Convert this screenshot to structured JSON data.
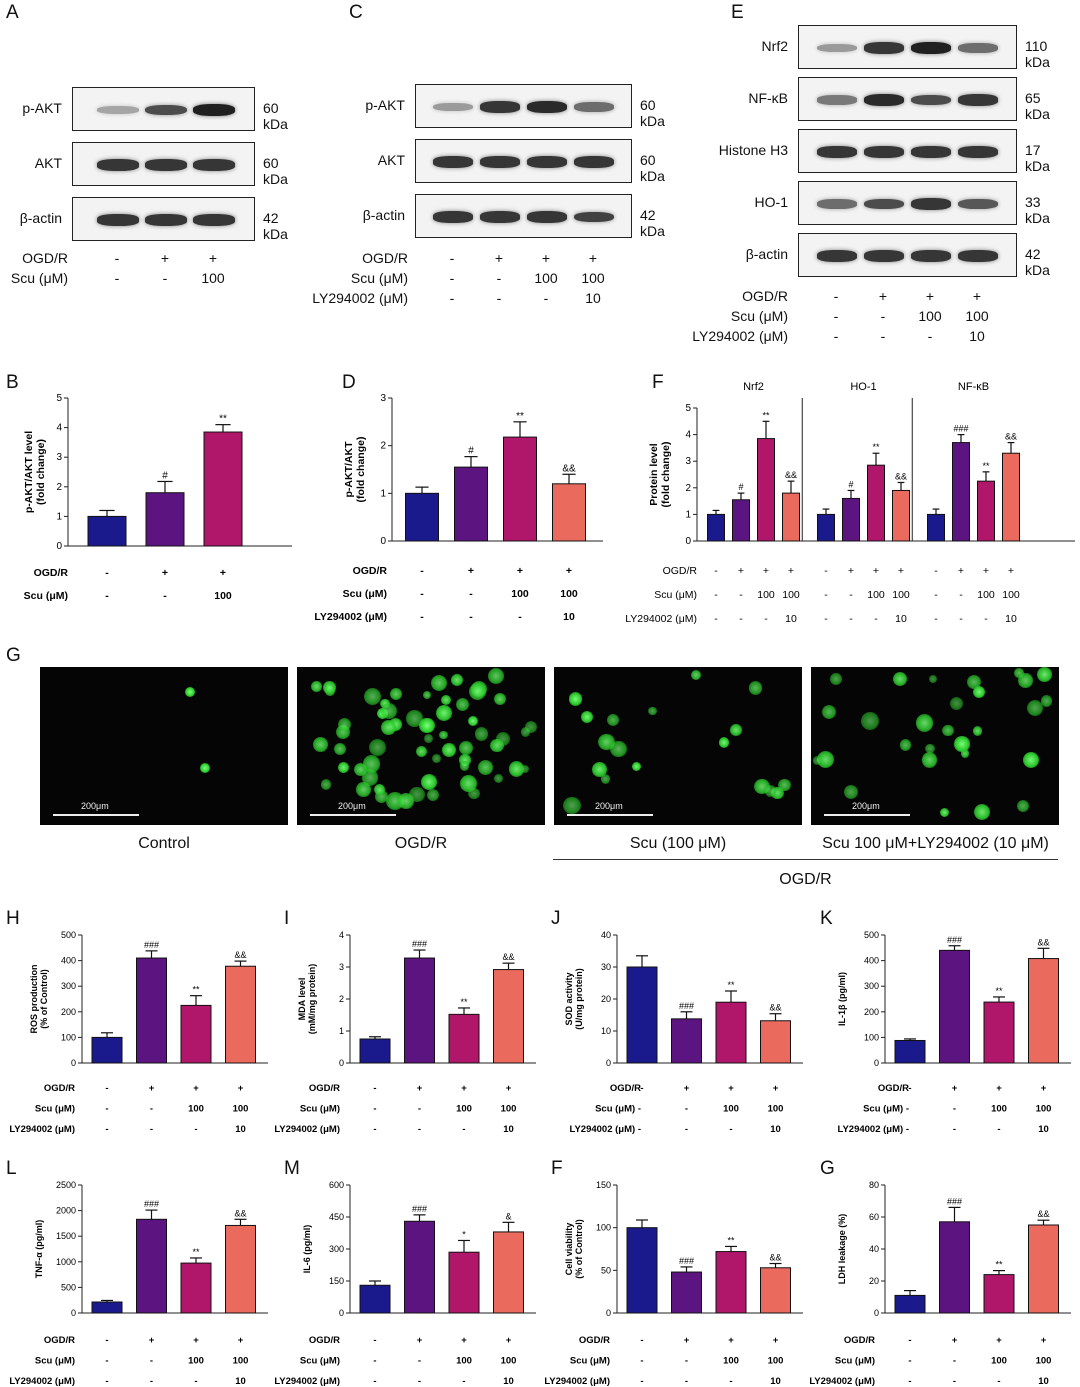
{
  "panels": {
    "A": "A",
    "B": "B",
    "C": "C",
    "D": "D",
    "E": "E",
    "F": "F",
    "G": "G",
    "H": "H",
    "I": "I",
    "J": "J",
    "K": "K",
    "L": "L",
    "M": "M",
    "F2": "F",
    "G2": "G"
  },
  "blot_A": {
    "rows": [
      {
        "label": "p-AKT",
        "kda": "60 kDa",
        "intensity": [
          0.35,
          0.75,
          0.95
        ]
      },
      {
        "label": "AKT",
        "kda": "60 kDa",
        "intensity": [
          0.85,
          0.85,
          0.85
        ]
      },
      {
        "label": "β-actin",
        "kda": "42 kDa",
        "intensity": [
          0.85,
          0.85,
          0.85
        ]
      }
    ],
    "cond_labels": [
      "OGD/R",
      "Scu (μM)"
    ],
    "cond_values": [
      [
        "-",
        "+",
        "+"
      ],
      [
        "-",
        "-",
        "100"
      ]
    ]
  },
  "blot_C": {
    "rows": [
      {
        "label": "p-AKT",
        "kda": "60 kDa",
        "intensity": [
          0.4,
          0.85,
          0.9,
          0.6
        ]
      },
      {
        "label": "AKT",
        "kda": "60 kDa",
        "intensity": [
          0.85,
          0.85,
          0.85,
          0.85
        ]
      },
      {
        "label": "β-actin",
        "kda": "42 kDa",
        "intensity": [
          0.85,
          0.85,
          0.85,
          0.8
        ]
      }
    ],
    "cond_labels": [
      "OGD/R",
      "Scu (μM)",
      "LY294002 (μM)"
    ],
    "cond_values": [
      [
        "-",
        "+",
        "+",
        "+"
      ],
      [
        "-",
        "-",
        "100",
        "100"
      ],
      [
        "-",
        "-",
        "-",
        "10"
      ]
    ]
  },
  "blot_E": {
    "rows": [
      {
        "label": "Nrf2",
        "kda": "110 kDa",
        "intensity": [
          0.4,
          0.85,
          0.95,
          0.6
        ]
      },
      {
        "label": "NF-κB",
        "kda": "65 kDa",
        "intensity": [
          0.55,
          0.9,
          0.75,
          0.85
        ]
      },
      {
        "label": "Histone H3",
        "kda": "17 kDa",
        "intensity": [
          0.85,
          0.85,
          0.85,
          0.85
        ]
      },
      {
        "label": "HO-1",
        "kda": "33 kDa",
        "intensity": [
          0.6,
          0.75,
          0.85,
          0.7
        ]
      },
      {
        "label": "β-actin",
        "kda": "42 kDa",
        "intensity": [
          0.85,
          0.85,
          0.85,
          0.85
        ]
      }
    ],
    "cond_labels": [
      "OGD/R",
      "Scu (μM)",
      "LY294002 (μM)"
    ],
    "cond_values": [
      [
        "-",
        "+",
        "+",
        "+"
      ],
      [
        "-",
        "-",
        "100",
        "100"
      ],
      [
        "-",
        "-",
        "-",
        "10"
      ]
    ]
  },
  "colors": {
    "c1": "#1a1a8c",
    "c2": "#5c1580",
    "c3": "#b0176b",
    "c4": "#ea6a5e"
  },
  "chart_data": [
    {
      "id": "B",
      "type": "bar",
      "ylabel": "p-AKT/AKT level\n(fold change)",
      "ylim": [
        0,
        5
      ],
      "yticks": [
        "0",
        "1",
        "2",
        "3",
        "4",
        "5"
      ],
      "values": [
        1.0,
        1.8,
        3.85
      ],
      "errors": [
        0.2,
        0.38,
        0.25
      ],
      "sig": [
        "",
        "#",
        "**"
      ],
      "cond_labels": [
        "OGD/R",
        "Scu (μM)"
      ],
      "cond_values": [
        [
          "-",
          "+",
          "+"
        ],
        [
          "-",
          "-",
          "100"
        ]
      ]
    },
    {
      "id": "D",
      "type": "bar",
      "ylabel": "p-AKT/AKT\n(fold change)",
      "ylim": [
        0,
        3
      ],
      "yticks": [
        "0",
        "1",
        "2",
        "3"
      ],
      "values": [
        1.0,
        1.55,
        2.18,
        1.2
      ],
      "errors": [
        0.13,
        0.22,
        0.32,
        0.2
      ],
      "sig": [
        "",
        "#",
        "**",
        "&&"
      ],
      "cond_labels": [
        "OGD/R",
        "Scu (μM)",
        "LY294002 (μM)"
      ],
      "cond_values": [
        [
          "-",
          "+",
          "+",
          "+"
        ],
        [
          "-",
          "-",
          "100",
          "100"
        ],
        [
          "-",
          "-",
          "-",
          "10"
        ]
      ]
    },
    {
      "id": "F",
      "type": "bar",
      "ylabel": "Protein level\n(fold change)",
      "ylim": [
        0,
        5
      ],
      "yticks": [
        "0",
        "1",
        "2",
        "3",
        "4",
        "5"
      ],
      "groups": [
        {
          "name": "Nrf2",
          "values": [
            1.0,
            1.55,
            3.85,
            1.8
          ],
          "errors": [
            0.15,
            0.25,
            0.65,
            0.45
          ],
          "sig": [
            "",
            "#",
            "**",
            "&&"
          ]
        },
        {
          "name": "HO-1",
          "values": [
            1.0,
            1.6,
            2.85,
            1.9
          ],
          "errors": [
            0.2,
            0.3,
            0.45,
            0.3
          ],
          "sig": [
            "",
            "#",
            "**",
            "&&"
          ]
        },
        {
          "name": "NF-κB",
          "values": [
            1.0,
            3.7,
            2.25,
            3.3
          ],
          "errors": [
            0.2,
            0.3,
            0.35,
            0.4
          ],
          "sig": [
            "",
            "###",
            "**",
            "&&"
          ]
        }
      ],
      "cond_labels": [
        "OGD/R",
        "Scu (μM)",
        "LY294002 (μM)"
      ],
      "cond_values": [
        [
          "-",
          "+",
          "+",
          "+"
        ],
        [
          "-",
          "-",
          "100",
          "100"
        ],
        [
          "-",
          "-",
          "-",
          "10"
        ]
      ]
    },
    {
      "id": "H",
      "type": "bar",
      "ylabel": "ROS production\n(% of Control)",
      "ylim": [
        0,
        500
      ],
      "yticks": [
        "0",
        "100",
        "200",
        "300",
        "400",
        "500"
      ],
      "values": [
        100,
        410,
        225,
        378
      ],
      "errors": [
        18,
        28,
        38,
        20
      ],
      "sig": [
        "",
        "###",
        "**",
        "&&"
      ],
      "cond_labels": [
        "OGD/R",
        "Scu (μM)",
        "LY294002 (μM)"
      ],
      "cond_values": [
        [
          "-",
          "+",
          "+",
          "+"
        ],
        [
          "-",
          "-",
          "100",
          "100"
        ],
        [
          "-",
          "-",
          "-",
          "10"
        ]
      ]
    },
    {
      "id": "I",
      "type": "bar",
      "ylabel": "MDA level\n(mM/mg protein)",
      "ylim": [
        0,
        4
      ],
      "yticks": [
        "0",
        "1",
        "2",
        "3",
        "4"
      ],
      "values": [
        0.75,
        3.28,
        1.52,
        2.92
      ],
      "errors": [
        0.07,
        0.25,
        0.2,
        0.2
      ],
      "sig": [
        "",
        "###",
        "**",
        "&&"
      ],
      "cond_labels": [
        "OGD/R",
        "Scu (μM)",
        "LY294002 (μM)"
      ],
      "cond_values": [
        [
          "-",
          "+",
          "+",
          "+"
        ],
        [
          "-",
          "-",
          "100",
          "100"
        ],
        [
          "-",
          "-",
          "-",
          "10"
        ]
      ]
    },
    {
      "id": "J",
      "type": "bar",
      "ylabel": "SOD activity\n(U/mg protein)",
      "ylim": [
        0,
        40
      ],
      "yticks": [
        "0",
        "10",
        "20",
        "30",
        "40"
      ],
      "values": [
        30,
        13.8,
        19,
        13.2
      ],
      "errors": [
        3.5,
        2.2,
        3.5,
        2.2
      ],
      "sig": [
        "",
        "###",
        "**",
        "&&"
      ],
      "cond_labels": [
        "OGD/R",
        "Scu (μM) -",
        "LY294002 (μM) -"
      ],
      "cond_values": [
        [
          "-",
          "+",
          "+",
          "+"
        ],
        [
          "",
          "-",
          "100",
          "100"
        ],
        [
          "",
          "-",
          "-",
          "10"
        ]
      ]
    },
    {
      "id": "K",
      "type": "bar",
      "ylabel": "IL-1β (pg/ml)",
      "ylim": [
        0,
        500
      ],
      "yticks": [
        "0",
        "100",
        "200",
        "300",
        "400",
        "500"
      ],
      "values": [
        88,
        440,
        238,
        408
      ],
      "errors": [
        6,
        18,
        20,
        40
      ],
      "sig": [
        "",
        "###",
        "**",
        "&&"
      ],
      "cond_labels": [
        "OGD/R",
        "Scu (μM) -",
        "LY294002 (μM) -"
      ],
      "cond_values": [
        [
          "-",
          "+",
          "+",
          "+"
        ],
        [
          "",
          "-",
          "100",
          "100"
        ],
        [
          "",
          "-",
          "-",
          "10"
        ]
      ]
    },
    {
      "id": "L",
      "type": "bar",
      "ylabel": "TNF-α (pg/ml)",
      "ylim": [
        0,
        2500
      ],
      "yticks": [
        "0",
        "500",
        "1000",
        "1500",
        "2000",
        "2500"
      ],
      "values": [
        215,
        1830,
        975,
        1710
      ],
      "errors": [
        30,
        180,
        100,
        120
      ],
      "sig": [
        "",
        "###",
        "**",
        "&&"
      ],
      "cond_labels": [
        "OGD/R",
        "Scu (μM)",
        "LY294002 (μM)"
      ],
      "cond_values": [
        [
          "-",
          "+",
          "+",
          "+"
        ],
        [
          "-",
          "-",
          "100",
          "100"
        ],
        [
          "-",
          "-",
          "-",
          "10"
        ]
      ]
    },
    {
      "id": "M",
      "type": "bar",
      "ylabel": "IL-6 (pg/ml)",
      "ylim": [
        0,
        600
      ],
      "yticks": [
        "0",
        "150",
        "300",
        "450",
        "600"
      ],
      "values": [
        130,
        430,
        285,
        380
      ],
      "errors": [
        20,
        30,
        55,
        45
      ],
      "sig": [
        "",
        "###",
        "*",
        "&"
      ],
      "cond_labels": [
        "OGD/R",
        "Scu (μM)",
        "LY294002 (μM)"
      ],
      "cond_values": [
        [
          "-",
          "+",
          "+",
          "+"
        ],
        [
          "-",
          "-",
          "100",
          "100"
        ],
        [
          "-",
          "-",
          "-",
          "10"
        ]
      ]
    },
    {
      "id": "F2",
      "type": "bar",
      "ylabel": "Cell viability\n(% of Control)",
      "ylim": [
        0,
        150
      ],
      "yticks": [
        "0",
        "50",
        "100",
        "150"
      ],
      "values": [
        100,
        48,
        72,
        53
      ],
      "errors": [
        9,
        6,
        6,
        5
      ],
      "sig": [
        "",
        "###",
        "**",
        "&&"
      ],
      "cond_labels": [
        "OGD/R",
        "Scu (μM)",
        "LY294002 (μM)"
      ],
      "cond_values": [
        [
          "-",
          "+",
          "+",
          "+"
        ],
        [
          "-",
          "-",
          "100",
          "100"
        ],
        [
          "-",
          "-",
          "-",
          "10"
        ]
      ]
    },
    {
      "id": "G2",
      "type": "bar",
      "ylabel": "LDH leakage (%)",
      "ylim": [
        0,
        80
      ],
      "yticks": [
        "0",
        "20",
        "40",
        "60",
        "80"
      ],
      "values": [
        11,
        57,
        24,
        55
      ],
      "errors": [
        3,
        9,
        2.5,
        3
      ],
      "sig": [
        "",
        "###",
        "**",
        "&&"
      ],
      "cond_labels": [
        "OGD/R",
        "Scu (μM)",
        "LY294002 (μM)"
      ],
      "cond_values": [
        [
          "-",
          "+",
          "+",
          "+"
        ],
        [
          "-",
          "-",
          "100",
          "100"
        ],
        [
          "-",
          "-",
          "-",
          "10"
        ]
      ]
    }
  ],
  "microscopy": {
    "scalebar": "200μm",
    "captions": [
      "Control",
      "OGD/R",
      "Scu (100 μM)",
      "Scu 100 μM+LY294002 (10 μM)"
    ],
    "group_label": "OGD/R",
    "cell_counts": [
      2,
      60,
      18,
      28
    ]
  }
}
